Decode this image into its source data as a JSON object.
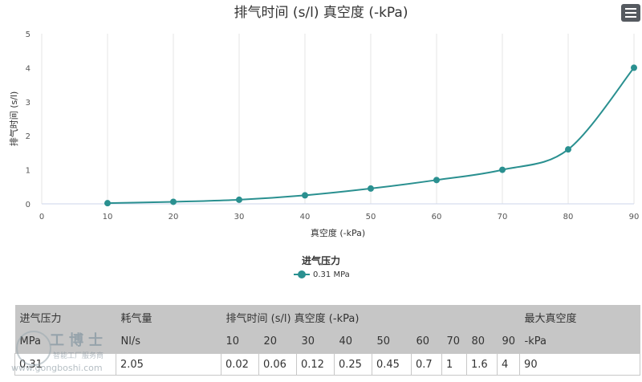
{
  "chart_data": {
    "type": "line",
    "title": "排气时间 (s/l) 真空度 (-kPa)",
    "xlabel": "真空度 (-kPa)",
    "ylabel": "排气时间 (s/l)",
    "xlim": [
      0,
      90
    ],
    "ylim": [
      0,
      5
    ],
    "x_ticks": [
      0,
      10,
      20,
      30,
      40,
      50,
      60,
      70,
      80,
      90
    ],
    "y_ticks": [
      0,
      1,
      2,
      3,
      4,
      5
    ],
    "grid": "vertical",
    "legend_title": "进气压力",
    "legend_position": "bottom-center",
    "series": [
      {
        "name": "0.31 MPa",
        "color": "#2a9090",
        "x": [
          10,
          20,
          30,
          40,
          50,
          60,
          70,
          80,
          90
        ],
        "y": [
          0.02,
          0.06,
          0.12,
          0.25,
          0.45,
          0.7,
          1,
          1.6,
          4
        ]
      }
    ]
  },
  "menu": {
    "icon": "hamburger-menu-icon"
  },
  "table": {
    "header_row1": {
      "pressure": "进气压力",
      "consumption": "耗气量",
      "exhaust": "排气时间 (s/l) 真空度 (-kPa)",
      "max": "最大真空度"
    },
    "header_row2": {
      "pressure_unit": "MPa",
      "consumption_unit": "Nl/s",
      "levels": [
        "10",
        "20",
        "30",
        "40",
        "50",
        "60",
        "70",
        "80",
        "90"
      ],
      "max_unit": "-kPa"
    },
    "rows": [
      {
        "pressure": "0.31",
        "consumption": "2.05",
        "values": [
          "0.02",
          "0.06",
          "0.12",
          "0.25",
          "0.45",
          "0.7",
          "1",
          "1.6",
          "4"
        ],
        "max": "90"
      }
    ]
  },
  "watermark": {
    "big": "工博士",
    "small": "智能工厂服务商",
    "url": "www.gongboshi.com"
  }
}
